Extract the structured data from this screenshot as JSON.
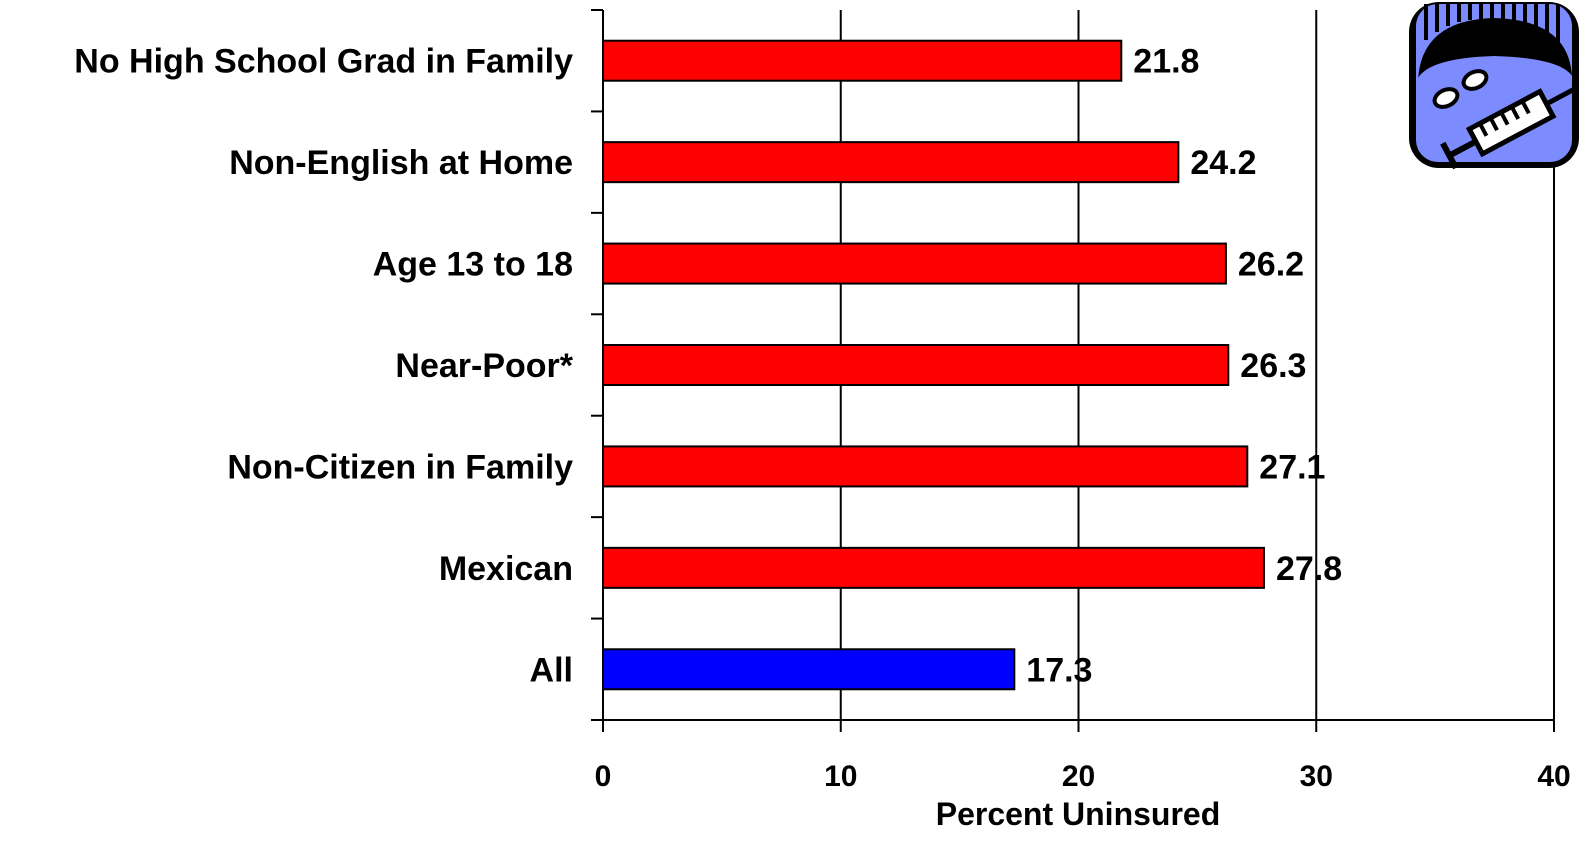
{
  "chart_data": {
    "type": "bar",
    "orientation": "horizontal",
    "categories": [
      "No High School Grad in Family",
      "Non-English at Home",
      "Age 13 to 18",
      "Near-Poor*",
      "Non-Citizen in Family",
      "Mexican",
      "All"
    ],
    "values": [
      21.8,
      24.2,
      26.2,
      26.3,
      27.1,
      27.8,
      17.3
    ],
    "value_labels": [
      "21.8",
      "24.2",
      "26.2",
      "26.3",
      "27.1",
      "27.8",
      "17.3"
    ],
    "bar_colors": [
      "#ff0000",
      "#ff0000",
      "#ff0000",
      "#ff0000",
      "#ff0000",
      "#ff0000",
      "#0000ff"
    ],
    "xlabel": "Percent Uninsured",
    "ylabel": "",
    "title": "",
    "xlim": [
      0,
      40
    ],
    "xticks": [
      0,
      10,
      20,
      30,
      40
    ],
    "xtick_labels": [
      "0",
      "10",
      "20",
      "30",
      "40"
    ],
    "grid": "vertical",
    "legend": "none"
  },
  "clipart": {
    "icon": "syringe-and-pills-icon"
  }
}
